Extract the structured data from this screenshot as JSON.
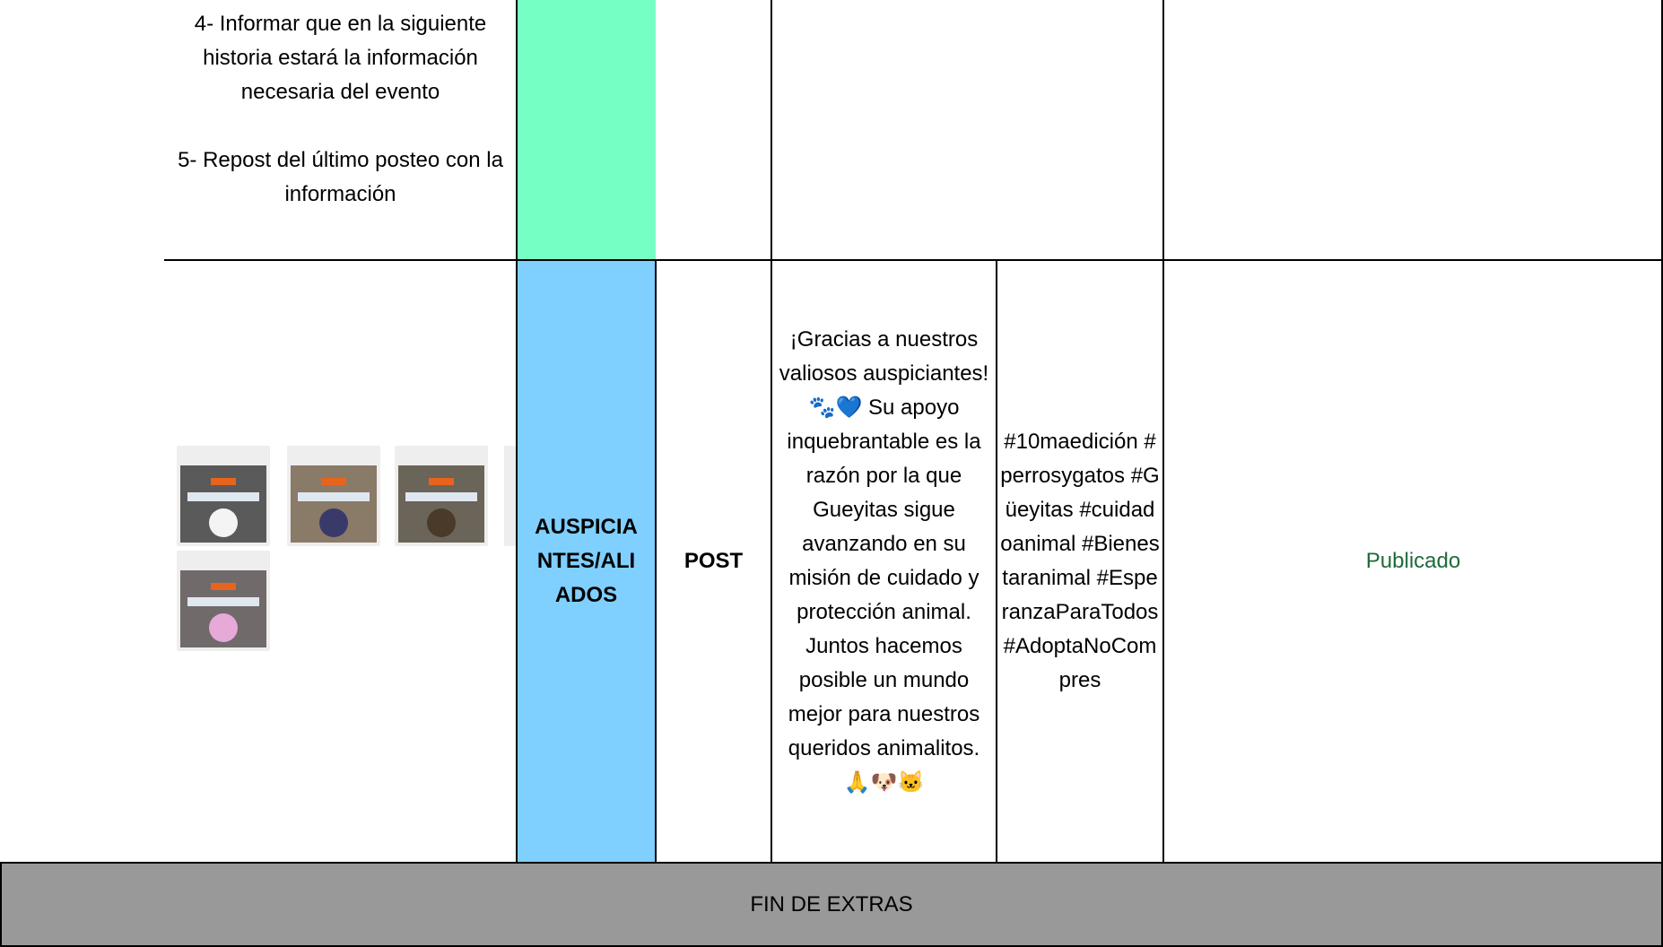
{
  "rows": [
    {
      "content": [
        "4- Informar que en la siguiente historia estará la información necesaria del evento",
        "5- Repost del último posteo con la información"
      ]
    },
    {
      "category": "AUSPICIANTES/ALIADOS",
      "format": "POST",
      "copy": "¡Gracias a nuestros valiosos auspiciantes! 🐾💙 Su apoyo inquebrantable es la razón por la que Gueyitas sigue avanzando en su misión de cuidado y protección animal. Juntos hacemos posible un mundo mejor para nuestros queridos animalitos. 🙏🐶🐱",
      "hashtags": "#10maedición #perrosygatos #Güeyitas #cuidadoanimal #Bienestaranimal #EsperanzaParaTodos #AdoptaNoCompres",
      "status": "Publicado"
    }
  ],
  "footer": "FIN DE EXTRAS"
}
